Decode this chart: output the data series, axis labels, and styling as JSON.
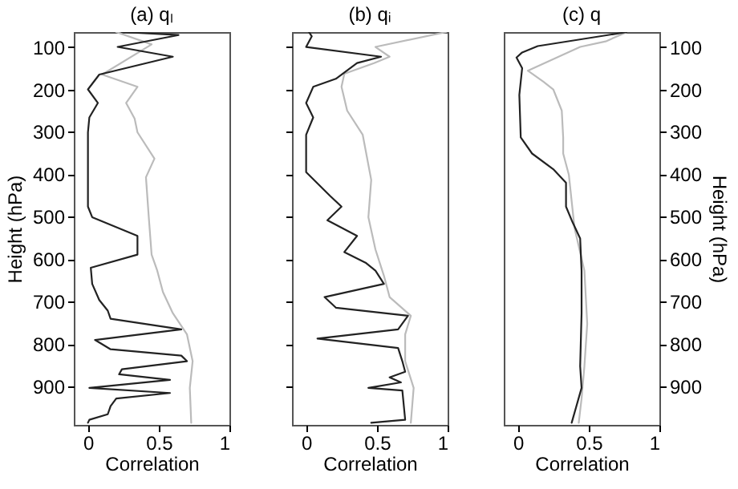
{
  "chart_data": [
    {
      "type": "line",
      "title": "(a) qₗ",
      "xlabel": "Correlation",
      "ylabel": "Height (hPa)",
      "xlim": [
        -0.1,
        1
      ],
      "xticks": [
        0,
        0.5,
        1
      ],
      "ylim": [
        990,
        65
      ],
      "yticks": [
        100,
        200,
        300,
        400,
        500,
        600,
        700,
        800,
        900
      ],
      "grid": false,
      "series": [
        {
          "color": "#bbbbbb",
          "x": [
            0.2,
            0.45,
            0.1,
            0.35,
            0.27,
            0.33,
            0.35,
            0.47,
            0.41,
            0.43,
            0.45,
            0.49,
            0.53,
            0.6,
            0.7,
            0.74,
            0.72,
            0.73
          ],
          "values": [
            65,
            94,
            165,
            194,
            232,
            269,
            301,
            363,
            407,
            501,
            589,
            627,
            677,
            727,
            777,
            840,
            903,
            985
          ]
        },
        {
          "color": "#222222",
          "x": [
            0.24,
            0.64,
            0.21,
            0.6,
            0.08,
            0.0,
            0.07,
            0.01,
            0.0,
            0.0,
            0.03,
            0.35,
            0.35,
            0.02,
            0.03,
            0.08,
            0.14,
            0.16,
            0.66,
            0.05,
            0.16,
            0.66,
            0.7,
            0.24,
            0.22,
            0.58,
            0.01,
            0.58,
            0.2,
            0.16,
            0.14,
            0.01,
            0.0
          ],
          "values": [
            65,
            72,
            100,
            123,
            165,
            200,
            232,
            266,
            301,
            476,
            501,
            545,
            589,
            620,
            658,
            696,
            721,
            740,
            765,
            790,
            812,
            827,
            840,
            859,
            871,
            884,
            903,
            915,
            928,
            946,
            965,
            978,
            985
          ]
        }
      ]
    },
    {
      "type": "line",
      "title": "(b) qᵢ",
      "xlabel": "Correlation",
      "xlim": [
        -0.1,
        1
      ],
      "xticks": [
        0,
        0.5,
        1
      ],
      "ylim": [
        990,
        65
      ],
      "yticks": [
        100,
        200,
        300,
        400,
        500,
        600,
        700,
        800,
        900
      ],
      "tick_labels": "x",
      "grid": false,
      "series": [
        {
          "color": "#bbbbbb",
          "x": [
            0.99,
            0.49,
            0.59,
            0.48,
            0.27,
            0.25,
            0.29,
            0.4,
            0.46,
            0.44,
            0.49,
            0.55,
            0.59,
            0.74,
            0.7,
            0.7,
            0.76,
            0.74
          ],
          "values": [
            65,
            100,
            123,
            138,
            163,
            194,
            250,
            307,
            413,
            501,
            577,
            639,
            689,
            733,
            777,
            840,
            903,
            985
          ]
        },
        {
          "color": "#222222",
          "x": [
            0.02,
            0.04,
            0.0,
            0.53,
            0.36,
            0.21,
            0.05,
            0.0,
            0.05,
            0.0,
            0.0,
            0.17,
            0.25,
            0.15,
            0.36,
            0.27,
            0.42,
            0.49,
            0.55,
            0.13,
            0.21,
            0.72,
            0.65,
            0.08,
            0.65,
            0.68,
            0.7,
            0.59,
            0.67,
            0.44,
            0.68,
            0.7,
            0.46
          ],
          "values": [
            65,
            75,
            100,
            123,
            138,
            175,
            194,
            232,
            266,
            307,
            395,
            451,
            476,
            508,
            545,
            583,
            608,
            627,
            658,
            689,
            714,
            733,
            765,
            787,
            809,
            840,
            865,
            878,
            890,
            903,
            909,
            978,
            985
          ]
        }
      ]
    },
    {
      "type": "line",
      "title": "(c) q",
      "xlabel": "Correlation",
      "y2label": "Height (hPa)",
      "xlim": [
        -0.1,
        1
      ],
      "xticks": [
        0,
        0.5,
        1
      ],
      "y2lim": [
        990,
        65
      ],
      "y2ticks": [
        100,
        200,
        300,
        400,
        500,
        600,
        700,
        800,
        900
      ],
      "grid": false,
      "series": [
        {
          "color": "#bbbbbb",
          "axis": "y2",
          "x": [
            0.77,
            0.62,
            0.44,
            0.07,
            0.18,
            0.25,
            0.31,
            0.32,
            0.32,
            0.36,
            0.4,
            0.47,
            0.49,
            0.47,
            0.45,
            0.43
          ],
          "values": [
            65,
            87,
            100,
            156,
            182,
            200,
            250,
            313,
            351,
            401,
            526,
            627,
            752,
            852,
            928,
            985
          ]
        },
        {
          "color": "#222222",
          "axis": "y2",
          "x": [
            0.77,
            0.14,
            0.03,
            -0.01,
            0.03,
            0.01,
            0.02,
            0.1,
            0.25,
            0.34,
            0.34,
            0.38,
            0.44,
            0.45,
            0.45,
            0.44,
            0.45,
            0.38
          ],
          "values": [
            65,
            98,
            113,
            125,
            150,
            213,
            313,
            351,
            388,
            420,
            476,
            508,
            551,
            627,
            727,
            852,
            903,
            985
          ]
        }
      ]
    }
  ]
}
